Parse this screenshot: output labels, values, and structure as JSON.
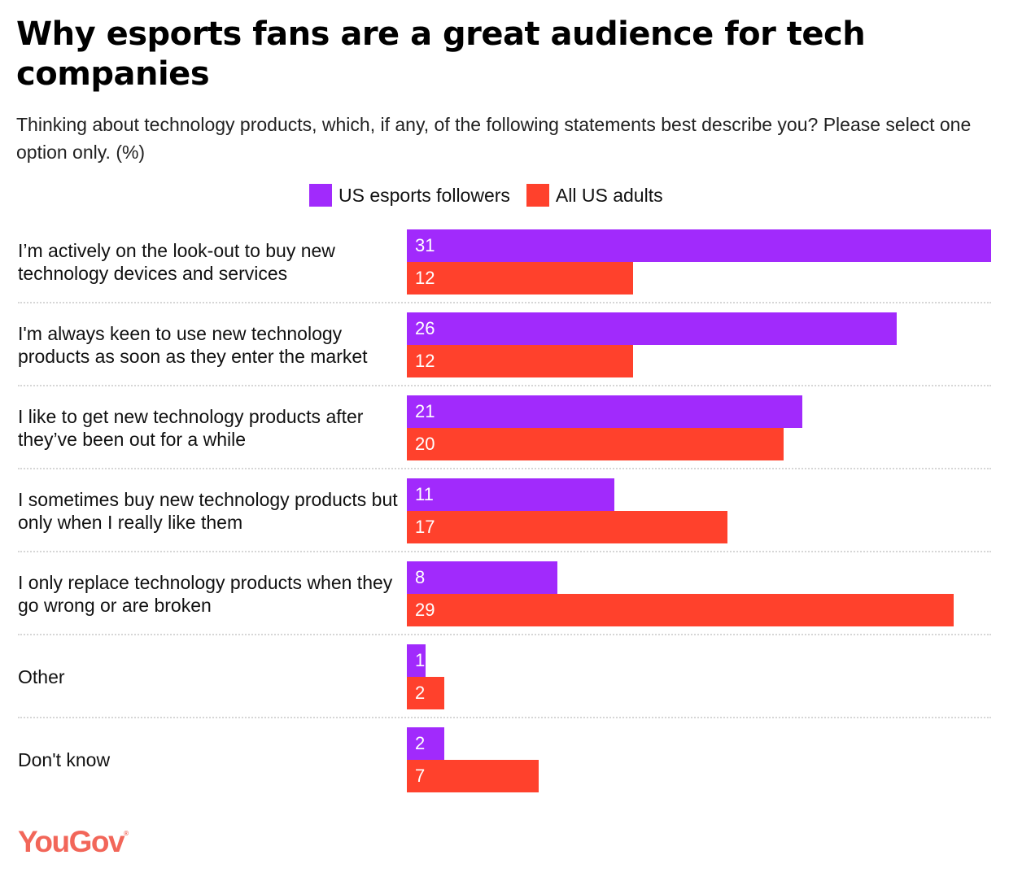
{
  "chart_data": {
    "type": "bar",
    "orientation": "horizontal",
    "title": "Why esports fans are a great audience for tech companies",
    "subtitle": "Thinking about technology products, which, if any, of the following statements best describe you? Please select one option only. (%)",
    "xlabel": "",
    "ylabel": "",
    "xlim": [
      0,
      31
    ],
    "grid": false,
    "legend_position": "top-center",
    "categories": [
      "I’m actively on the look-out to buy new technology devices and services",
      "I'm always keen to use new technology products as soon as they enter the market",
      "I like to get new technology products after they’ve been out for a while",
      "I sometimes buy new technology products but only when I really like them",
      "I only replace technology products when they go wrong or are broken",
      "Other",
      "Don't know"
    ],
    "series": [
      {
        "name": "US esports followers",
        "color": "#a12afc",
        "values": [
          31,
          26,
          21,
          11,
          8,
          1,
          2
        ]
      },
      {
        "name": "All US adults",
        "color": "#ff412c",
        "values": [
          12,
          12,
          20,
          17,
          29,
          2,
          7
        ]
      }
    ]
  },
  "branding": {
    "logo_text": "YouGov",
    "logo_mark": "®",
    "logo_color": "#f26659"
  }
}
